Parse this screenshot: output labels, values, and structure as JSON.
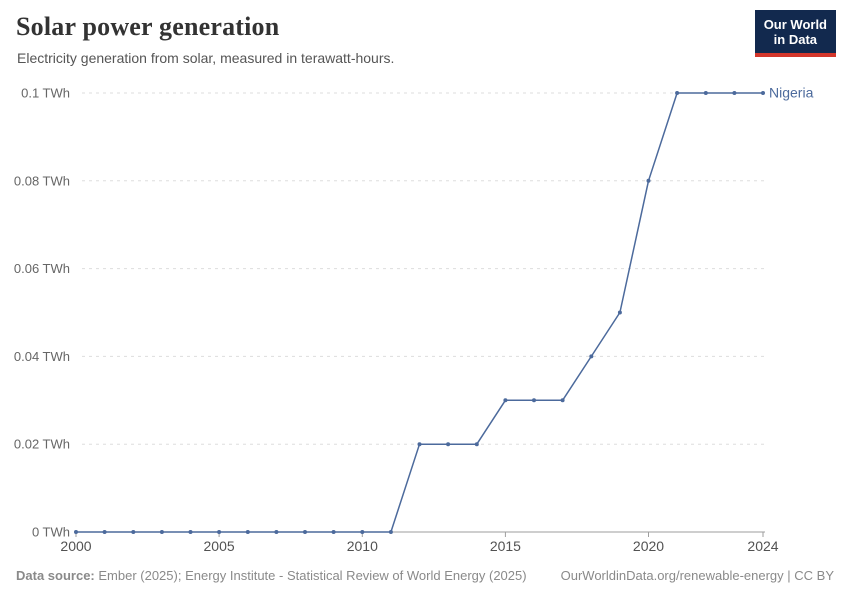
{
  "header": {
    "title": "Solar power generation",
    "subtitle": "Electricity generation from solar, measured in terawatt-hours.",
    "logo": {
      "line1": "Our World",
      "line2": "in Data",
      "bg_color": "#12294e",
      "accent_color": "#d3362b"
    }
  },
  "chart_data": {
    "type": "line",
    "title": "Solar power generation",
    "ylabel": "",
    "xlabel": "",
    "unit": "TWh",
    "grid": "horizontal-dashed",
    "legend_position": "end-of-line-label",
    "xlim": [
      2000,
      2024
    ],
    "ylim": [
      0,
      0.1
    ],
    "x": [
      2000,
      2001,
      2002,
      2003,
      2004,
      2005,
      2006,
      2007,
      2008,
      2009,
      2010,
      2011,
      2012,
      2013,
      2014,
      2015,
      2016,
      2017,
      2018,
      2019,
      2020,
      2021,
      2022,
      2023,
      2024
    ],
    "series": [
      {
        "name": "Nigeria",
        "color": "#4c6a9c",
        "values": [
          0,
          0,
          0,
          0,
          0,
          0,
          0,
          0,
          0,
          0,
          0,
          0,
          0.02,
          0.02,
          0.02,
          0.03,
          0.03,
          0.03,
          0.04,
          0.05,
          0.08,
          0.1,
          0.1,
          0.1,
          0.1
        ]
      }
    ],
    "xticks": [
      2000,
      2005,
      2010,
      2015,
      2020,
      2024
    ],
    "yticks": [
      {
        "value": 0,
        "label": "0 TWh"
      },
      {
        "value": 0.02,
        "label": "0.02 TWh"
      },
      {
        "value": 0.04,
        "label": "0.04 TWh"
      },
      {
        "value": 0.06,
        "label": "0.06 TWh"
      },
      {
        "value": 0.08,
        "label": "0.08 TWh"
      },
      {
        "value": 0.1,
        "label": "0.1 TWh"
      }
    ],
    "gridline_color": "#dddddd",
    "axis_color": "#9e9e9e"
  },
  "footer": {
    "source_label": "Data source:",
    "source_text": " Ember (2025); Energy Institute - Statistical Review of World Energy (2025)",
    "link_text": "OurWorldinData.org/renewable-energy | CC BY"
  }
}
